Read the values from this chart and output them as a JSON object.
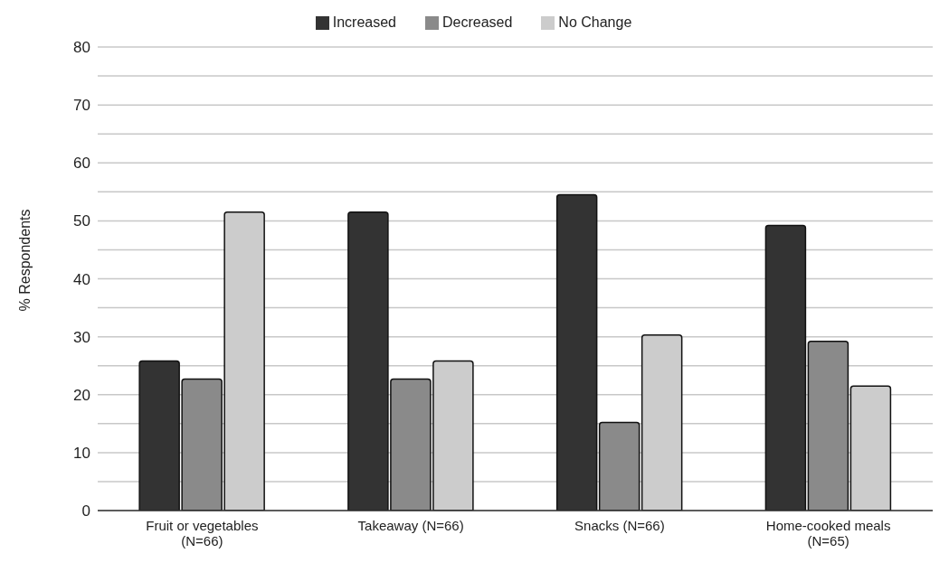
{
  "chart_data": {
    "type": "bar",
    "ylabel": "% Respondents",
    "categories": [
      "Fruit or vegetables (N=66)",
      "Takeaway (N=66)",
      "Snacks (N=66)",
      "Home-cooked meals (N=65)"
    ],
    "series": [
      {
        "name": "Increased",
        "color": "#333333",
        "values": [
          25.8,
          51.5,
          54.5,
          49.2
        ]
      },
      {
        "name": "Decreased",
        "color": "#8a8a8a",
        "values": [
          22.7,
          22.7,
          15.2,
          29.2
        ]
      },
      {
        "name": "No Change",
        "color": "#cccccc",
        "values": [
          51.5,
          25.8,
          30.3,
          21.5
        ]
      }
    ],
    "ylim": [
      0,
      80
    ],
    "yticks": [
      0,
      {
        "value": 5,
        "label": null
      },
      10,
      {
        "value": 15,
        "label": null
      },
      20,
      {
        "value": 25,
        "label": null
      },
      30,
      {
        "value": 35,
        "label": null
      },
      40,
      {
        "value": 45,
        "label": null
      },
      50,
      {
        "value": 55,
        "label": null
      },
      60,
      {
        "value": 65,
        "label": null
      },
      70,
      {
        "value": 75,
        "label": null
      },
      80
    ],
    "grid": "y",
    "legend": "top"
  }
}
